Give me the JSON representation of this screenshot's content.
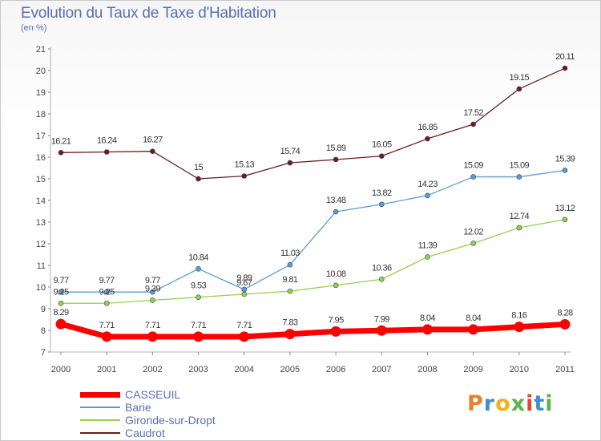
{
  "title": "Evolution du Taux de Taxe d'Habitation",
  "subtitle": "(en %)",
  "logo": {
    "text": "Proxiti",
    "colors": [
      "#e87f2a",
      "#3e8fd1",
      "#f0b11d",
      "#5cb547",
      "#e8432e",
      "#3e8fd1",
      "#5cb547"
    ]
  },
  "chart_data": {
    "type": "line",
    "title": "Evolution du Taux de Taxe d'Habitation",
    "ylabel": "(en %)",
    "xlabel": "",
    "x": [
      "2000",
      "2001",
      "2002",
      "2003",
      "2004",
      "2005",
      "2006",
      "2007",
      "2008",
      "2009",
      "2010",
      "2011"
    ],
    "ylim": [
      7,
      21
    ],
    "yticks": [
      "7",
      "8",
      "9",
      "10",
      "11",
      "12",
      "13",
      "14",
      "15",
      "16",
      "17",
      "18",
      "19",
      "20",
      "21"
    ],
    "grid": false,
    "legend_position": "bottom-left",
    "series": [
      {
        "name": "CASSEUIL",
        "color": "#ff0000",
        "values": [
          8.29,
          7.71,
          7.71,
          7.71,
          7.71,
          7.83,
          7.95,
          7.99,
          8.04,
          8.04,
          8.16,
          8.28
        ],
        "labels": [
          "8.29",
          "7.71",
          "7.71",
          "7.71",
          "7.71",
          "7.83",
          "7.95",
          "7.99",
          "8.04",
          "8.04",
          "8.16",
          "8.28"
        ]
      },
      {
        "name": "Barie",
        "color": "#5b9bd5",
        "values": [
          9.77,
          9.77,
          9.77,
          10.84,
          9.89,
          11.03,
          13.48,
          13.82,
          14.23,
          15.09,
          15.09,
          15.39
        ],
        "labels": [
          "9.77",
          "9.77",
          "9.77",
          "10.84",
          "9.89",
          "11.03",
          "13.48",
          "13.82",
          "14.23",
          "15.09",
          "15.09",
          "15.39"
        ]
      },
      {
        "name": "Gironde-sur-Dropt",
        "color": "#92d050",
        "values": [
          9.25,
          9.25,
          9.39,
          9.53,
          9.67,
          9.81,
          10.08,
          10.36,
          11.39,
          12.02,
          12.74,
          13.12
        ],
        "labels": [
          "9.25",
          "9.25",
          "9.39",
          "9.53",
          "9.67",
          "9.81",
          "10.08",
          "10.36",
          "11.39",
          "12.02",
          "12.74",
          "13.12"
        ]
      },
      {
        "name": "Caudrot",
        "color": "#6b1c1c",
        "values": [
          16.21,
          16.24,
          16.27,
          15,
          15.13,
          15.74,
          15.89,
          16.05,
          16.85,
          17.52,
          19.15,
          20.11
        ],
        "labels": [
          "16.21",
          "16.24",
          "16.27",
          "15",
          "15.13",
          "15.74",
          "15.89",
          "16.05",
          "16.85",
          "17.52",
          "19.15",
          "20.11"
        ]
      }
    ]
  }
}
